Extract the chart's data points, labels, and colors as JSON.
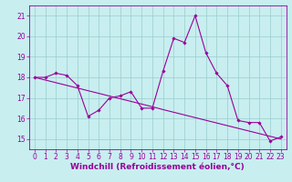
{
  "x": [
    0,
    1,
    2,
    3,
    4,
    5,
    6,
    7,
    8,
    9,
    10,
    11,
    12,
    13,
    14,
    15,
    16,
    17,
    18,
    19,
    20,
    21,
    22,
    23
  ],
  "y_main": [
    18.0,
    18.0,
    18.2,
    18.1,
    17.6,
    16.1,
    16.4,
    17.0,
    17.1,
    17.3,
    16.5,
    16.5,
    18.3,
    19.9,
    19.7,
    21.0,
    19.2,
    18.2,
    17.6,
    15.9,
    15.8,
    15.8,
    14.9,
    15.1
  ],
  "y_trend": [
    18.0,
    17.87,
    17.74,
    17.61,
    17.48,
    17.35,
    17.22,
    17.09,
    16.96,
    16.83,
    16.7,
    16.57,
    16.43,
    16.3,
    16.17,
    16.04,
    15.91,
    15.78,
    15.65,
    15.52,
    15.39,
    15.26,
    15.13,
    15.0
  ],
  "bg_color": "#c8eef0",
  "line_color": "#990099",
  "grid_color": "#99cccc",
  "xlim": [
    -0.5,
    23.5
  ],
  "ylim": [
    14.5,
    21.5
  ],
  "yticks": [
    15,
    16,
    17,
    18,
    19,
    20,
    21
  ],
  "xticks": [
    0,
    1,
    2,
    3,
    4,
    5,
    6,
    7,
    8,
    9,
    10,
    11,
    12,
    13,
    14,
    15,
    16,
    17,
    18,
    19,
    20,
    21,
    22,
    23
  ],
  "tick_fontsize": 5.5,
  "xlabel": "Windchill (Refroidissement éolien,°C)",
  "xlabel_fontsize": 6.5
}
